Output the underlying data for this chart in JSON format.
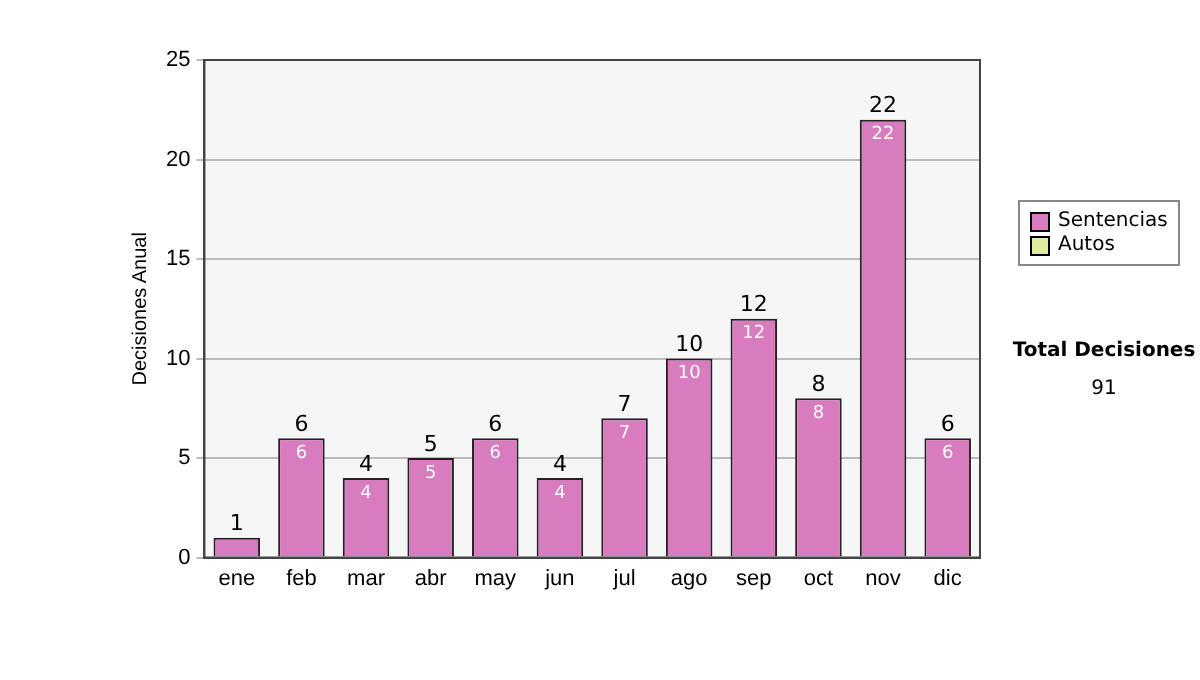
{
  "chart_data": {
    "type": "bar",
    "ylabel": "Decisiones Anual",
    "categories": [
      "ene",
      "feb",
      "mar",
      "abr",
      "may",
      "jun",
      "jul",
      "ago",
      "sep",
      "oct",
      "nov",
      "dic"
    ],
    "series": [
      {
        "name": "Sentencias",
        "color": "#d97cbf",
        "values": [
          1,
          6,
          4,
          5,
          6,
          4,
          7,
          10,
          12,
          8,
          22,
          6
        ],
        "value_labels": [
          null,
          "6",
          "4",
          "5",
          "6",
          "4",
          "7",
          "10",
          "12",
          "8",
          "22",
          "6"
        ]
      },
      {
        "name": "Autos",
        "color": "#dfe99f",
        "values": [
          0,
          0,
          0,
          0,
          0,
          0,
          0,
          0,
          0,
          0,
          0,
          0
        ]
      }
    ],
    "stacked": true,
    "totals": [
      "1",
      "6",
      "4",
      "5",
      "6",
      "4",
      "7",
      "10",
      "12",
      "8",
      "22",
      "6"
    ],
    "ylim": [
      0,
      25
    ],
    "yticks": [
      0,
      5,
      10,
      15,
      20,
      25
    ],
    "grid": "y",
    "legend": "right",
    "annotations": [
      "Total Decisiones",
      "91"
    ]
  }
}
